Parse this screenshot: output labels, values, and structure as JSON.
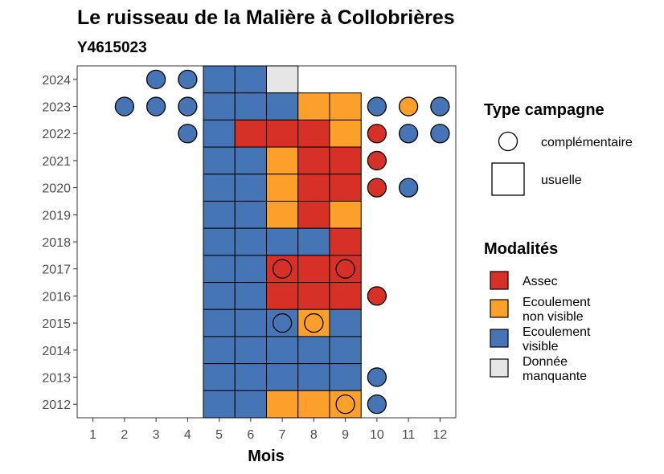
{
  "chart_data": {
    "type": "heatmap",
    "title": "Le ruisseau de la Malière à Collobrières",
    "subtitle": "Y4615023",
    "xlabel": "Mois",
    "ylabel": "",
    "x_ticks": [
      "1",
      "2",
      "3",
      "4",
      "5",
      "6",
      "7",
      "8",
      "9",
      "10",
      "11",
      "12"
    ],
    "y_ticks": [
      "2012",
      "2013",
      "2014",
      "2015",
      "2016",
      "2017",
      "2018",
      "2019",
      "2020",
      "2021",
      "2022",
      "2023",
      "2024"
    ],
    "colors": {
      "assec": "#d73027",
      "ecoulement_non_visible": "#fd9f2b",
      "ecoulement_visible": "#4575b4",
      "donnee_manquante": "#e6e6e6"
    },
    "legend_campagne": {
      "title": "Type campagne",
      "items": [
        {
          "key": "complementaire",
          "label": "complémentaire",
          "shape": "circle"
        },
        {
          "key": "usuelle",
          "label": "usuelle",
          "shape": "square"
        }
      ]
    },
    "legend_modalites": {
      "title": "Modalités",
      "items": [
        {
          "key": "assec",
          "lines": [
            "Assec"
          ]
        },
        {
          "key": "ecoulement_non_visible",
          "lines": [
            "Ecoulement",
            "non visible"
          ]
        },
        {
          "key": "ecoulement_visible",
          "lines": [
            "Ecoulement",
            "visible"
          ]
        },
        {
          "key": "donnee_manquante",
          "lines": [
            "Donnée",
            "manquante"
          ]
        }
      ]
    },
    "usuelle": [
      {
        "year": 2024,
        "month": 5,
        "modalite": "ecoulement_visible"
      },
      {
        "year": 2024,
        "month": 6,
        "modalite": "ecoulement_visible"
      },
      {
        "year": 2024,
        "month": 7,
        "modalite": "donnee_manquante"
      },
      {
        "year": 2023,
        "month": 5,
        "modalite": "ecoulement_visible"
      },
      {
        "year": 2023,
        "month": 6,
        "modalite": "ecoulement_visible"
      },
      {
        "year": 2023,
        "month": 7,
        "modalite": "ecoulement_visible"
      },
      {
        "year": 2023,
        "month": 8,
        "modalite": "ecoulement_non_visible"
      },
      {
        "year": 2023,
        "month": 9,
        "modalite": "ecoulement_non_visible"
      },
      {
        "year": 2022,
        "month": 5,
        "modalite": "ecoulement_visible"
      },
      {
        "year": 2022,
        "month": 6,
        "modalite": "assec"
      },
      {
        "year": 2022,
        "month": 7,
        "modalite": "assec"
      },
      {
        "year": 2022,
        "month": 8,
        "modalite": "assec"
      },
      {
        "year": 2022,
        "month": 9,
        "modalite": "ecoulement_non_visible"
      },
      {
        "year": 2021,
        "month": 5,
        "modalite": "ecoulement_visible"
      },
      {
        "year": 2021,
        "month": 6,
        "modalite": "ecoulement_visible"
      },
      {
        "year": 2021,
        "month": 7,
        "modalite": "ecoulement_non_visible"
      },
      {
        "year": 2021,
        "month": 8,
        "modalite": "assec"
      },
      {
        "year": 2021,
        "month": 9,
        "modalite": "assec"
      },
      {
        "year": 2020,
        "month": 5,
        "modalite": "ecoulement_visible"
      },
      {
        "year": 2020,
        "month": 6,
        "modalite": "ecoulement_visible"
      },
      {
        "year": 2020,
        "month": 7,
        "modalite": "ecoulement_non_visible"
      },
      {
        "year": 2020,
        "month": 8,
        "modalite": "assec"
      },
      {
        "year": 2020,
        "month": 9,
        "modalite": "assec"
      },
      {
        "year": 2019,
        "month": 5,
        "modalite": "ecoulement_visible"
      },
      {
        "year": 2019,
        "month": 6,
        "modalite": "ecoulement_visible"
      },
      {
        "year": 2019,
        "month": 7,
        "modalite": "ecoulement_non_visible"
      },
      {
        "year": 2019,
        "month": 8,
        "modalite": "assec"
      },
      {
        "year": 2019,
        "month": 9,
        "modalite": "ecoulement_non_visible"
      },
      {
        "year": 2018,
        "month": 5,
        "modalite": "ecoulement_visible"
      },
      {
        "year": 2018,
        "month": 6,
        "modalite": "ecoulement_visible"
      },
      {
        "year": 2018,
        "month": 7,
        "modalite": "ecoulement_visible"
      },
      {
        "year": 2018,
        "month": 8,
        "modalite": "ecoulement_visible"
      },
      {
        "year": 2018,
        "month": 9,
        "modalite": "assec"
      },
      {
        "year": 2017,
        "month": 5,
        "modalite": "ecoulement_visible"
      },
      {
        "year": 2017,
        "month": 6,
        "modalite": "ecoulement_visible"
      },
      {
        "year": 2017,
        "month": 7,
        "modalite": "assec"
      },
      {
        "year": 2017,
        "month": 8,
        "modalite": "assec"
      },
      {
        "year": 2017,
        "month": 9,
        "modalite": "assec"
      },
      {
        "year": 2016,
        "month": 5,
        "modalite": "ecoulement_visible"
      },
      {
        "year": 2016,
        "month": 6,
        "modalite": "ecoulement_visible"
      },
      {
        "year": 2016,
        "month": 7,
        "modalite": "assec"
      },
      {
        "year": 2016,
        "month": 8,
        "modalite": "assec"
      },
      {
        "year": 2016,
        "month": 9,
        "modalite": "assec"
      },
      {
        "year": 2015,
        "month": 5,
        "modalite": "ecoulement_visible"
      },
      {
        "year": 2015,
        "month": 6,
        "modalite": "ecoulement_visible"
      },
      {
        "year": 2015,
        "month": 7,
        "modalite": "ecoulement_visible"
      },
      {
        "year": 2015,
        "month": 8,
        "modalite": "ecoulement_non_visible"
      },
      {
        "year": 2015,
        "month": 9,
        "modalite": "ecoulement_visible"
      },
      {
        "year": 2014,
        "month": 5,
        "modalite": "ecoulement_visible"
      },
      {
        "year": 2014,
        "month": 6,
        "modalite": "ecoulement_visible"
      },
      {
        "year": 2014,
        "month": 7,
        "modalite": "ecoulement_visible"
      },
      {
        "year": 2014,
        "month": 8,
        "modalite": "ecoulement_visible"
      },
      {
        "year": 2014,
        "month": 9,
        "modalite": "ecoulement_visible"
      },
      {
        "year": 2013,
        "month": 5,
        "modalite": "ecoulement_visible"
      },
      {
        "year": 2013,
        "month": 6,
        "modalite": "ecoulement_visible"
      },
      {
        "year": 2013,
        "month": 7,
        "modalite": "ecoulement_visible"
      },
      {
        "year": 2013,
        "month": 8,
        "modalite": "ecoulement_visible"
      },
      {
        "year": 2013,
        "month": 9,
        "modalite": "ecoulement_visible"
      },
      {
        "year": 2012,
        "month": 5,
        "modalite": "ecoulement_visible"
      },
      {
        "year": 2012,
        "month": 6,
        "modalite": "ecoulement_visible"
      },
      {
        "year": 2012,
        "month": 7,
        "modalite": "ecoulement_non_visible"
      },
      {
        "year": 2012,
        "month": 8,
        "modalite": "ecoulement_non_visible"
      },
      {
        "year": 2012,
        "month": 9,
        "modalite": "ecoulement_non_visible"
      }
    ],
    "complementaire": [
      {
        "year": 2024,
        "month": 3,
        "modalite": "ecoulement_visible"
      },
      {
        "year": 2024,
        "month": 4,
        "modalite": "ecoulement_visible"
      },
      {
        "year": 2023,
        "month": 2,
        "modalite": "ecoulement_visible"
      },
      {
        "year": 2023,
        "month": 3,
        "modalite": "ecoulement_visible"
      },
      {
        "year": 2023,
        "month": 4,
        "modalite": "ecoulement_visible"
      },
      {
        "year": 2023,
        "month": 10,
        "modalite": "ecoulement_visible"
      },
      {
        "year": 2023,
        "month": 11,
        "modalite": "ecoulement_non_visible"
      },
      {
        "year": 2023,
        "month": 12,
        "modalite": "ecoulement_visible"
      },
      {
        "year": 2022,
        "month": 4,
        "modalite": "ecoulement_visible"
      },
      {
        "year": 2022,
        "month": 10,
        "modalite": "assec"
      },
      {
        "year": 2022,
        "month": 11,
        "modalite": "ecoulement_visible"
      },
      {
        "year": 2022,
        "month": 12,
        "modalite": "ecoulement_visible"
      },
      {
        "year": 2021,
        "month": 10,
        "modalite": "assec"
      },
      {
        "year": 2020,
        "month": 10,
        "modalite": "assec"
      },
      {
        "year": 2020,
        "month": 11,
        "modalite": "ecoulement_visible"
      },
      {
        "year": 2017,
        "month": 7,
        "modalite": "assec"
      },
      {
        "year": 2017,
        "month": 9,
        "modalite": "assec"
      },
      {
        "year": 2016,
        "month": 10,
        "modalite": "assec"
      },
      {
        "year": 2015,
        "month": 7,
        "modalite": "ecoulement_visible"
      },
      {
        "year": 2015,
        "month": 8,
        "modalite": "ecoulement_non_visible"
      },
      {
        "year": 2013,
        "month": 10,
        "modalite": "ecoulement_visible"
      },
      {
        "year": 2012,
        "month": 9,
        "modalite": "ecoulement_non_visible"
      },
      {
        "year": 2012,
        "month": 10,
        "modalite": "ecoulement_visible"
      }
    ]
  }
}
